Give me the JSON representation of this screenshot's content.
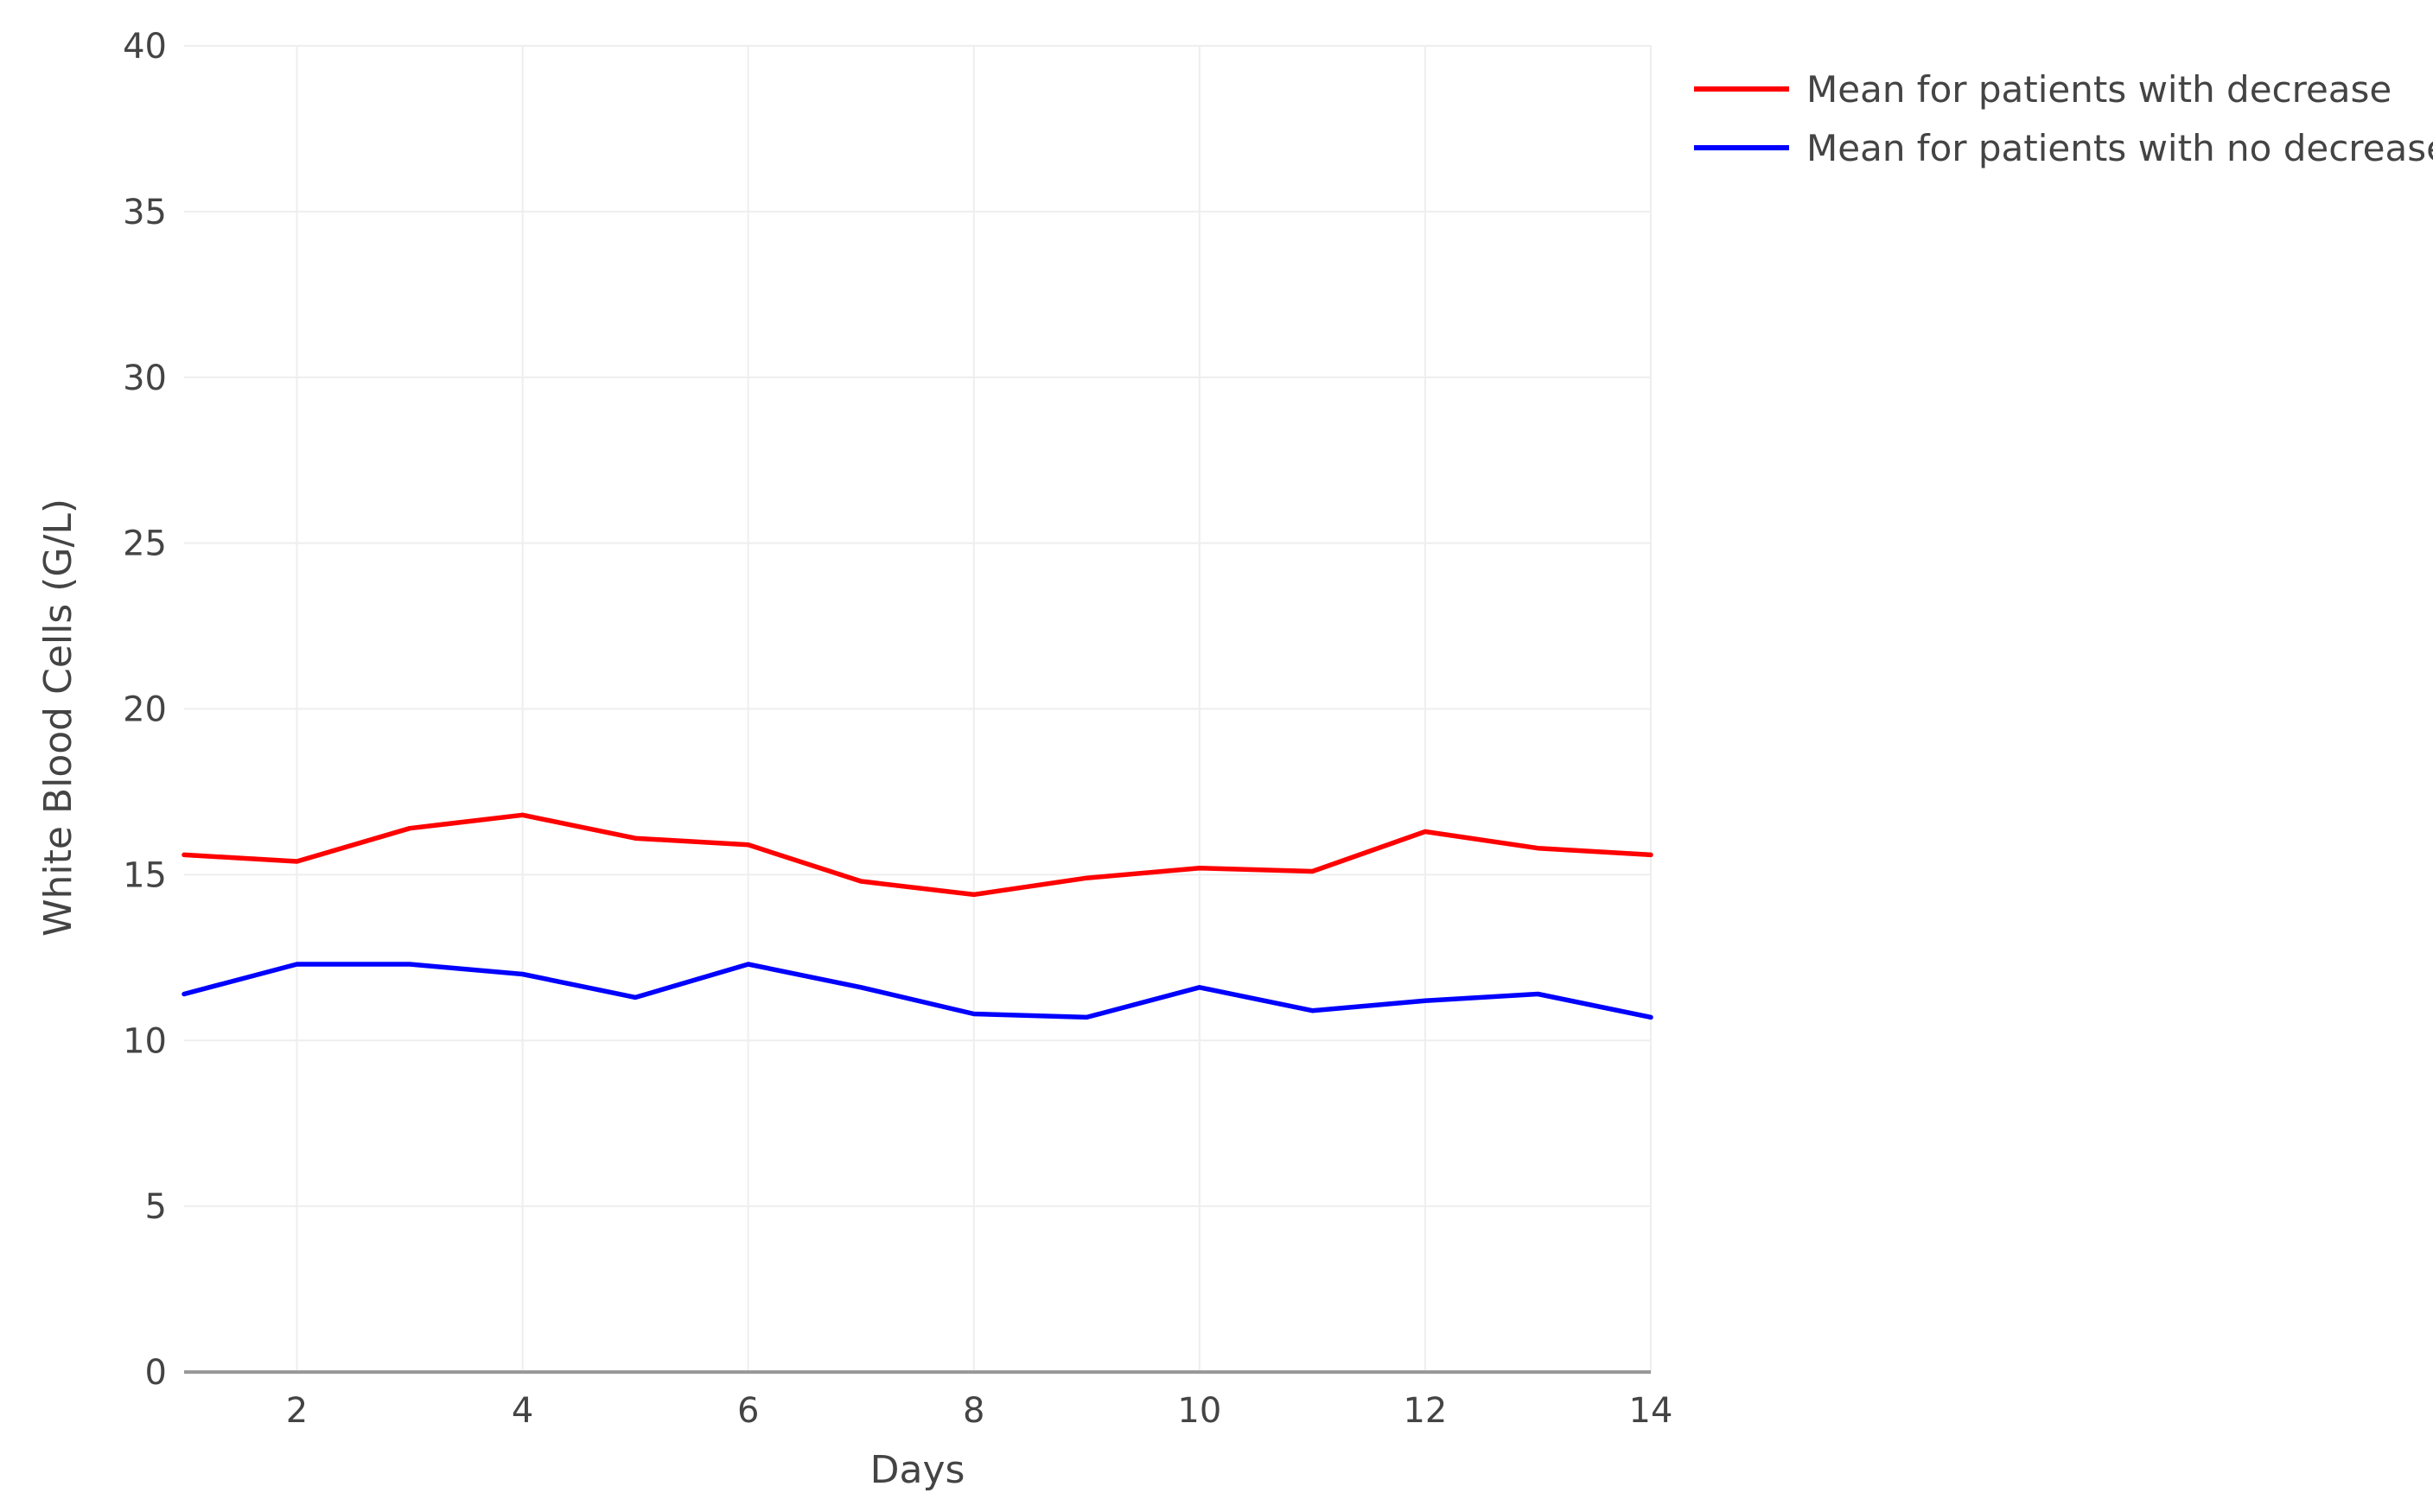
{
  "chart_data": {
    "type": "line",
    "title": "",
    "xlabel": "Days",
    "ylabel": "White Blood Cells (G/L)",
    "xlim": [
      1,
      14
    ],
    "ylim": [
      0,
      40
    ],
    "x_ticks": [
      2,
      4,
      6,
      8,
      10,
      12,
      14
    ],
    "y_ticks": [
      0,
      5,
      10,
      15,
      20,
      25,
      30,
      35,
      40
    ],
    "grid": true,
    "legend_position": "top-right",
    "x": [
      1,
      2,
      3,
      4,
      5,
      6,
      7,
      8,
      9,
      10,
      11,
      12,
      13,
      14
    ],
    "series": [
      {
        "name": "Mean for patients with decrease",
        "color": "#ff0000",
        "values": [
          15.6,
          15.4,
          16.4,
          16.8,
          16.1,
          15.9,
          14.8,
          14.4,
          14.9,
          15.2,
          15.1,
          16.3,
          15.8,
          15.6
        ]
      },
      {
        "name": "Mean for patients with no decrease",
        "color": "#0000ff",
        "values": [
          11.4,
          12.3,
          12.3,
          12.0,
          11.3,
          12.3,
          11.6,
          10.8,
          10.7,
          11.6,
          10.9,
          11.2,
          11.4,
          10.7
        ]
      }
    ],
    "colors": {
      "grid": "#eeeeee",
      "axis_line": "#999999",
      "text": "#444444",
      "background": "#ffffff"
    }
  }
}
